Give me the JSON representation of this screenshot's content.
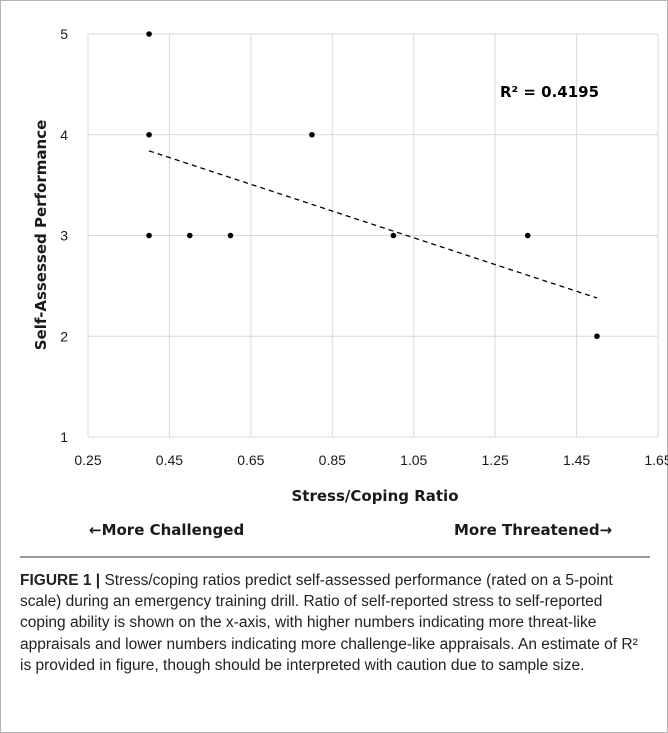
{
  "chart_data": {
    "type": "scatter",
    "xlabel": "Stress/Coping Ratio",
    "ylabel": "Self-Assessed Performance",
    "xlim": [
      0.25,
      1.65
    ],
    "ylim": [
      1,
      5
    ],
    "xticks": [
      "0.25",
      "0.45",
      "0.65",
      "0.85",
      "1.05",
      "1.25",
      "1.45",
      "1.65"
    ],
    "yticks": [
      "1",
      "2",
      "3",
      "4",
      "5"
    ],
    "grid": true,
    "points": [
      {
        "x": 0.4,
        "y": 5
      },
      {
        "x": 0.4,
        "y": 4
      },
      {
        "x": 0.4,
        "y": 3
      },
      {
        "x": 0.5,
        "y": 3
      },
      {
        "x": 0.6,
        "y": 3
      },
      {
        "x": 0.8,
        "y": 4
      },
      {
        "x": 1.0,
        "y": 3
      },
      {
        "x": 1.33,
        "y": 3
      },
      {
        "x": 1.5,
        "y": 2
      }
    ],
    "trendline": {
      "style": "dashed",
      "linear": true,
      "x": [
        0.4,
        1.5
      ],
      "y": [
        3.84,
        2.38
      ]
    },
    "annotation": "R² = 0.4195",
    "marker_color": "#000000",
    "grid_color": "#d9d9d9"
  },
  "direction_labels": {
    "left": "←More Challenged",
    "right": "More Threatened→"
  },
  "caption": {
    "label": "FIGURE 1 | ",
    "text": "Stress/coping ratios predict self-assessed performance (rated on a 5-point scale) during an emergency training drill. Ratio of self-reported stress to self-reported coping ability is shown on the x-axis, with higher numbers indicating more threat-like appraisals and lower numbers indicating more challenge-like appraisals. An estimate of R² is provided in figure, though should be interpreted with caution due to sample size."
  }
}
